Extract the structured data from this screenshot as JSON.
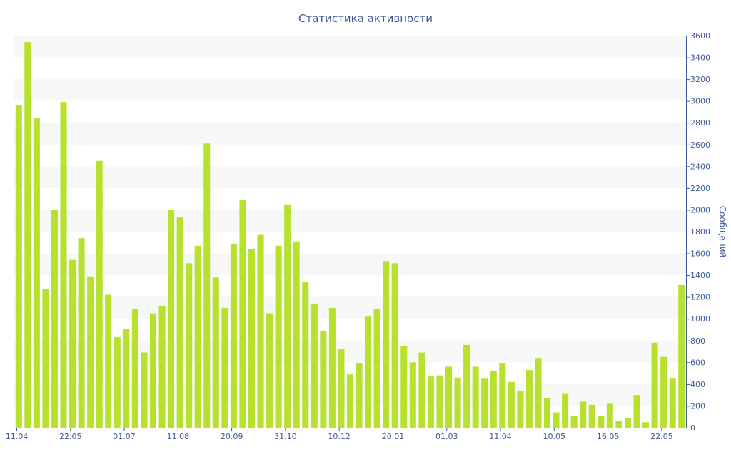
{
  "chart_data": {
    "type": "bar",
    "title": "Статистика активности",
    "ylabel": "Сообщений",
    "xlabel": "",
    "ylim": [
      0,
      3600
    ],
    "y_ticks": [
      0,
      200,
      400,
      600,
      800,
      1000,
      1200,
      1400,
      1600,
      1800,
      2000,
      2200,
      2400,
      2600,
      2800,
      3000,
      3200,
      3400,
      3600
    ],
    "y_axis_position": "right",
    "x_tick_labels": [
      {
        "index": 0,
        "label": "11.04"
      },
      {
        "index": 6,
        "label": "22.05"
      },
      {
        "index": 12,
        "label": "01.07"
      },
      {
        "index": 18,
        "label": "11.08"
      },
      {
        "index": 24,
        "label": "20.09"
      },
      {
        "index": 30,
        "label": "31.10"
      },
      {
        "index": 36,
        "label": "10.12"
      },
      {
        "index": 42,
        "label": "20.01"
      },
      {
        "index": 48,
        "label": "01.03"
      },
      {
        "index": 54,
        "label": "11.04"
      },
      {
        "index": 60,
        "label": "10.05"
      },
      {
        "index": 66,
        "label": "16.05"
      },
      {
        "index": 72,
        "label": "22.05"
      }
    ],
    "values": [
      2960,
      3540,
      2840,
      1270,
      2000,
      2990,
      1540,
      1740,
      1390,
      2450,
      1220,
      830,
      910,
      1090,
      690,
      1050,
      1120,
      2000,
      1930,
      1510,
      1670,
      2610,
      1380,
      1100,
      1690,
      2090,
      1640,
      1770,
      1050,
      1670,
      2050,
      1710,
      1340,
      1140,
      890,
      1100,
      720,
      490,
      590,
      1020,
      1090,
      1530,
      1510,
      750,
      600,
      690,
      470,
      480,
      560,
      460,
      760,
      560,
      450,
      520,
      590,
      420,
      340,
      530,
      640,
      270,
      140,
      310,
      110,
      240,
      210,
      110,
      220,
      60,
      90,
      300,
      50,
      780,
      650,
      450,
      1310
    ],
    "colors": {
      "bar": "#b6e12d",
      "axis": "#3d5a96",
      "text": "#3d5a96",
      "band": "#f7f7f7"
    },
    "grid": "alternating horizontal bands",
    "legend": "none"
  }
}
